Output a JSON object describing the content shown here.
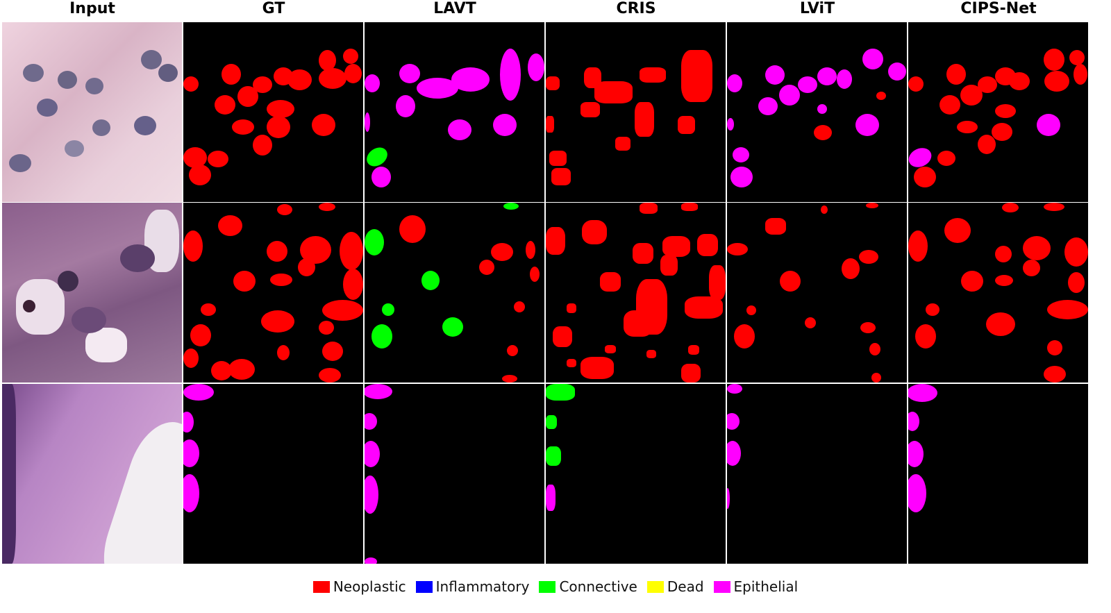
{
  "columns": [
    "Input",
    "GT",
    "LAVT",
    "CRIS",
    "LViT",
    "CIPS-Net"
  ],
  "legend": [
    {
      "label": "Neoplastic",
      "color": "#ff0000"
    },
    {
      "label": "Inflammatory",
      "color": "#0000ff"
    },
    {
      "label": "Connective",
      "color": "#00ff00"
    },
    {
      "label": "Dead",
      "color": "#ffff00"
    },
    {
      "label": "Epithelial",
      "color": "#ff00ff"
    }
  ]
}
